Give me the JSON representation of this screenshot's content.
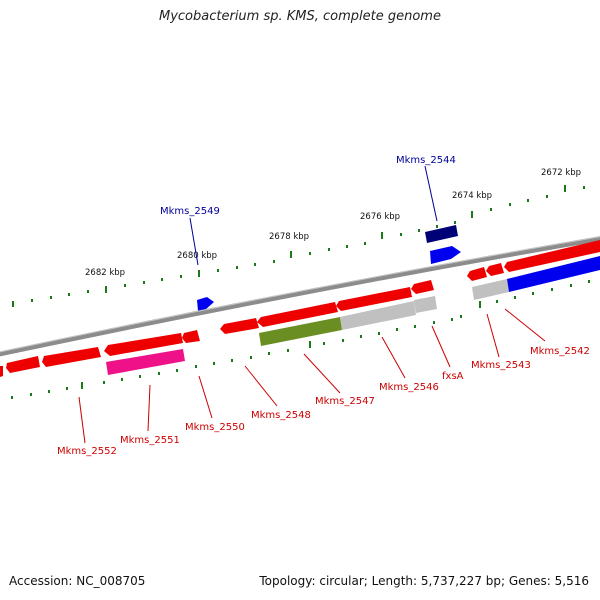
{
  "title": "Mycobacterium sp. KMS, complete genome",
  "footer": {
    "accession": "Accession: NC_008705",
    "summary": "Topology: circular; Length: 5,737,227 bp; Genes: 5,516"
  },
  "colors": {
    "backbone": "#8c8c8c",
    "gene_red": "#ee0000",
    "gene_blue": "#0000ee",
    "gene_navy": "#000077",
    "gene_pink": "#ee1188",
    "gene_olive": "#6b8e23",
    "gene_grey": "#c0c0c0",
    "tick": "#1a7a1a",
    "label_red": "#cc0000",
    "label_blue": "#000099"
  },
  "ticks": {
    "outer_labels": [
      "2672 kbp",
      "2674 kbp",
      "2676 kbp",
      "2678 kbp",
      "2680 kbp",
      "2682 kbp"
    ]
  },
  "genes": {
    "outer_labels": [
      "Mkms_2544",
      "Mkms_2549"
    ],
    "inner_labels": [
      "Mkms_2542",
      "Mkms_2543",
      "fxsA",
      "Mkms_2546",
      "Mkms_2547",
      "Mkms_2548",
      "Mkms_2550",
      "Mkms_2551",
      "Mkms_2552"
    ]
  }
}
